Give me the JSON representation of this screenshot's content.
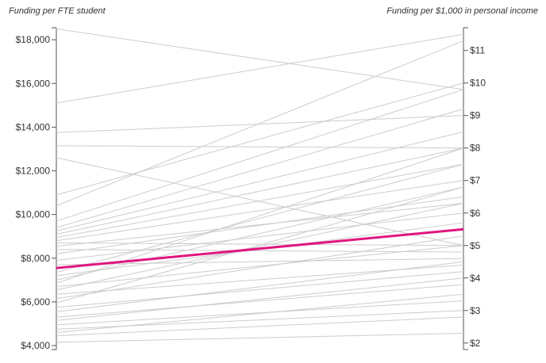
{
  "chart_data": {
    "type": "slope",
    "left_axis": {
      "title": "Funding per FTE student",
      "ticks": [
        4000,
        6000,
        8000,
        10000,
        12000,
        14000,
        16000,
        18000
      ],
      "tick_labels": [
        "$4,000",
        "$6,000",
        "$8,000",
        "$10,000",
        "$12,000",
        "$14,000",
        "$16,000",
        "$18,000"
      ],
      "range": [
        3820,
        18550
      ]
    },
    "right_axis": {
      "title": "Funding per $1,000 in personal income",
      "ticks": [
        2,
        3,
        4,
        5,
        6,
        7,
        8,
        9,
        10,
        11
      ],
      "tick_labels": [
        "$2",
        "$3",
        "$4",
        "$5",
        "$6",
        "$7",
        "$8",
        "$9",
        "$10",
        "$11"
      ],
      "range": [
        1.8,
        11.7
      ]
    },
    "grid": false,
    "colors": {
      "highlight": "#e0157f",
      "background_lines": "#cccccc",
      "axis": "#555555"
    },
    "highlight": {
      "left": 7550,
      "right": 5.5
    },
    "series": [
      {
        "left": 18500,
        "right": 9.8
      },
      {
        "left": 15100,
        "right": 11.5
      },
      {
        "left": 13750,
        "right": 9.0
      },
      {
        "left": 13150,
        "right": 8.0
      },
      {
        "left": 12600,
        "right": 5.0
      },
      {
        "left": 10900,
        "right": 10.0
      },
      {
        "left": 10400,
        "right": 11.3
      },
      {
        "left": 9700,
        "right": 9.8
      },
      {
        "left": 9400,
        "right": 9.2
      },
      {
        "left": 9250,
        "right": 8.5
      },
      {
        "left": 9100,
        "right": 8.0
      },
      {
        "left": 8950,
        "right": 7.5
      },
      {
        "left": 8800,
        "right": 7.0
      },
      {
        "left": 8700,
        "right": 5.0
      },
      {
        "left": 8550,
        "right": 6.3
      },
      {
        "left": 8400,
        "right": 4.8
      },
      {
        "left": 8200,
        "right": 6.5
      },
      {
        "left": 7900,
        "right": 6.0
      },
      {
        "left": 7700,
        "right": 4.6
      },
      {
        "left": 7350,
        "right": 7.5
      },
      {
        "left": 7200,
        "right": 5.7
      },
      {
        "left": 7000,
        "right": 6.8
      },
      {
        "left": 6850,
        "right": 8.0
      },
      {
        "left": 6700,
        "right": 5.0
      },
      {
        "left": 6550,
        "right": 6.3
      },
      {
        "left": 6350,
        "right": 4.4
      },
      {
        "left": 6150,
        "right": 5.3
      },
      {
        "left": 5950,
        "right": 6.8
      },
      {
        "left": 5750,
        "right": 4.2
      },
      {
        "left": 5550,
        "right": 4.5
      },
      {
        "left": 5300,
        "right": 3.8
      },
      {
        "left": 5150,
        "right": 4.0
      },
      {
        "left": 4950,
        "right": 3.3
      },
      {
        "left": 4750,
        "right": 3.0
      },
      {
        "left": 4600,
        "right": 3.5
      },
      {
        "left": 4450,
        "right": 2.8
      },
      {
        "left": 4150,
        "right": 2.3
      }
    ]
  }
}
